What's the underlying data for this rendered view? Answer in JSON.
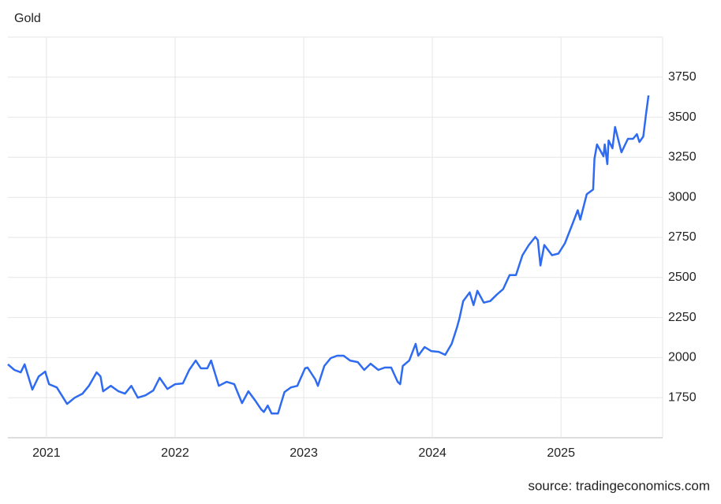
{
  "chart_data": {
    "type": "line",
    "title": "Gold",
    "source": "source: tradingeconomics.com",
    "x": [
      2020.7,
      2020.75,
      2020.8,
      2020.83,
      2020.89,
      2020.94,
      2020.99,
      2021.02,
      2021.08,
      2021.13,
      2021.16,
      2021.22,
      2021.28,
      2021.33,
      2021.39,
      2021.42,
      2021.44,
      2021.5,
      2021.56,
      2021.61,
      2021.66,
      2021.71,
      2021.77,
      2021.83,
      2021.88,
      2021.94,
      2022.0,
      2022.06,
      2022.11,
      2022.16,
      2022.2,
      2022.25,
      2022.28,
      2022.34,
      2022.4,
      2022.46,
      2022.52,
      2022.57,
      2022.62,
      2022.67,
      2022.69,
      2022.72,
      2022.75,
      2022.8,
      2022.85,
      2022.9,
      2022.95,
      2023.01,
      2023.03,
      2023.09,
      2023.11,
      2023.16,
      2023.21,
      2023.26,
      2023.31,
      2023.36,
      2023.42,
      2023.47,
      2023.52,
      2023.58,
      2023.63,
      2023.68,
      2023.73,
      2023.75,
      2023.77,
      2023.82,
      2023.87,
      2023.89,
      2023.94,
      2023.99,
      2024.05,
      2024.1,
      2024.15,
      2024.19,
      2024.21,
      2024.24,
      2024.29,
      2024.32,
      2024.35,
      2024.4,
      2024.45,
      2024.5,
      2024.55,
      2024.6,
      2024.65,
      2024.7,
      2024.75,
      2024.8,
      2024.82,
      2024.84,
      2024.87,
      2024.93,
      2024.98,
      2025.03,
      2025.09,
      2025.13,
      2025.15,
      2025.2,
      2025.25,
      2025.26,
      2025.28,
      2025.33,
      2025.34,
      2025.36,
      2025.37,
      2025.4,
      2025.42,
      2025.47,
      2025.52,
      2025.56,
      2025.59,
      2025.61,
      2025.64,
      2025.66,
      2025.68
    ],
    "series": [
      {
        "name": "Gold",
        "color": "#2f6bf0",
        "values": [
          1958,
          1923,
          1908,
          1958,
          1800,
          1883,
          1913,
          1834,
          1814,
          1750,
          1711,
          1750,
          1775,
          1824,
          1908,
          1883,
          1790,
          1824,
          1790,
          1775,
          1824,
          1750,
          1765,
          1795,
          1874,
          1804,
          1834,
          1839,
          1923,
          1982,
          1933,
          1933,
          1982,
          1824,
          1849,
          1834,
          1716,
          1790,
          1735,
          1676,
          1661,
          1701,
          1651,
          1651,
          1785,
          1814,
          1824,
          1933,
          1938,
          1864,
          1824,
          1948,
          1997,
          2012,
          2012,
          1982,
          1972,
          1923,
          1962,
          1923,
          1938,
          1938,
          1849,
          1834,
          1948,
          1982,
          2086,
          2012,
          2066,
          2041,
          2036,
          2017,
          2086,
          2185,
          2244,
          2353,
          2407,
          2328,
          2417,
          2343,
          2353,
          2392,
          2427,
          2515,
          2515,
          2639,
          2703,
          2753,
          2733,
          2575,
          2703,
          2639,
          2649,
          2713,
          2836,
          2920,
          2861,
          3019,
          3049,
          3241,
          3330,
          3256,
          3330,
          3207,
          3355,
          3306,
          3439,
          3281,
          3365,
          3365,
          3394,
          3345,
          3380,
          3513,
          3636
        ]
      }
    ],
    "xlim": [
      2020.7,
      2025.79
    ],
    "xticks": [
      2021,
      2022,
      2023,
      2024,
      2025
    ],
    "ylim": [
      1500,
      4000
    ],
    "yticks": [
      1750,
      2000,
      2250,
      2500,
      2750,
      3000,
      3250,
      3500,
      3750
    ],
    "grid": true
  }
}
